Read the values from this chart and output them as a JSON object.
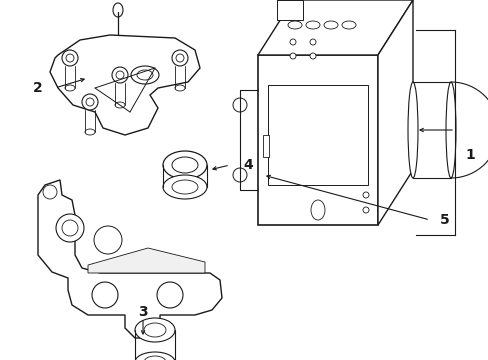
{
  "bg_color": "#ffffff",
  "line_color": "#1a1a1a",
  "lw_main": 1.0,
  "lw_thin": 0.6,
  "fig_w": 4.89,
  "fig_h": 3.6,
  "dpi": 100,
  "xlim": [
    0,
    489
  ],
  "ylim": [
    0,
    360
  ]
}
